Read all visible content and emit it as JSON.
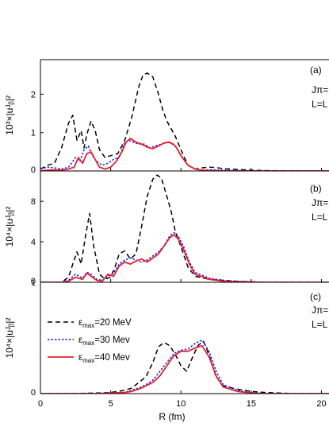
{
  "chart_data": {
    "type": "line",
    "xlabel": "R (fm)",
    "xlim": [
      0,
      22
    ],
    "x_ticks": [
      "0",
      "5",
      "10",
      "15",
      "20"
    ],
    "legend": {
      "placement": "top-left of panel (c)",
      "entries": [
        {
          "label_main": "ε",
          "label_sub": "max",
          "label_rest": "=20 MeV",
          "color": "#000000",
          "dash": "dashed"
        },
        {
          "label_main": "ε",
          "label_sub": "max",
          "label_rest": "=30 Mev",
          "color": "#1a1aff",
          "dash": "dotted"
        },
        {
          "label_main": "ε",
          "label_sub": "max",
          "label_rest": "=40 Mev",
          "color": "#e8202a",
          "dash": "solid"
        }
      ]
    },
    "panels": [
      {
        "tag": "(a)",
        "ylabel": "10³×|uᴶᵦ|²",
        "ylim": [
          0,
          2.9
        ],
        "y_ticks": [
          "0",
          "1",
          "2"
        ],
        "y_tick_values": [
          0,
          1,
          2
        ],
        "annot_1": "Jπ=",
        "annot_2": "L=L",
        "series": [
          {
            "name": "ε max=20 MeV",
            "color": "#000000",
            "dash": "dashed",
            "x": [
              0,
              0.5,
              1,
              1.5,
              2,
              2.3,
              2.6,
              2.9,
              3.1,
              3.3,
              3.6,
              3.9,
              4.2,
              4.6,
              5,
              5.5,
              6,
              6.5,
              7,
              7.3,
              7.6,
              8,
              8.4,
              8.7,
              9,
              9.3,
              9.6,
              10,
              10.5,
              11,
              11.5,
              12,
              12.5,
              13,
              14,
              15,
              16,
              18,
              20,
              22
            ],
            "y": [
              0.05,
              0.15,
              0.2,
              0.6,
              1.25,
              1.45,
              0.8,
              1.05,
              0.6,
              0.95,
              1.3,
              1.05,
              0.55,
              0.35,
              0.4,
              0.45,
              0.8,
              1.4,
              2.2,
              2.5,
              2.55,
              2.45,
              2.0,
              1.6,
              1.3,
              1.1,
              0.9,
              0.55,
              0.15,
              0.05,
              0.08,
              0.1,
              0.09,
              0.06,
              0.04,
              0.02,
              0.01,
              0,
              0,
              0
            ]
          },
          {
            "name": "ε max=30 Mev",
            "color": "#1a1aff",
            "dash": "dotted",
            "x": [
              0,
              0.5,
              1,
              1.5,
              2,
              2.5,
              2.8,
              3.1,
              3.4,
              3.7,
              4,
              4.4,
              4.8,
              5.2,
              5.6,
              6,
              6.3,
              6.6,
              7,
              7.4,
              7.8,
              8.2,
              8.6,
              9,
              9.4,
              9.7,
              10,
              10.5,
              11,
              11.5,
              12,
              13,
              14,
              16,
              18,
              20,
              22
            ],
            "y": [
              0.05,
              0.1,
              0.08,
              0.05,
              0.1,
              0.35,
              0.25,
              0.55,
              0.65,
              0.4,
              0.25,
              0.15,
              0.2,
              0.3,
              0.35,
              0.75,
              0.8,
              0.75,
              0.7,
              0.7,
              0.6,
              0.65,
              0.7,
              0.75,
              0.72,
              0.6,
              0.4,
              0.15,
              0.05,
              0.02,
              0.03,
              0.02,
              0.01,
              0,
              0,
              0,
              0
            ]
          },
          {
            "name": "ε max=40 Mev",
            "color": "#e8202a",
            "dash": "solid",
            "x": [
              0,
              0.5,
              1,
              1.5,
              2,
              2.4,
              2.7,
              3,
              3.3,
              3.6,
              3.9,
              4.2,
              4.6,
              5,
              5.4,
              5.8,
              6.1,
              6.4,
              6.8,
              7.2,
              7.6,
              8,
              8.4,
              8.8,
              9.2,
              9.6,
              10,
              10.5,
              11,
              11.5,
              12,
              13,
              14,
              16,
              18,
              20,
              22
            ],
            "y": [
              0,
              0.02,
              0.03,
              0.02,
              0.05,
              0.1,
              0.35,
              0.2,
              0.45,
              0.5,
              0.3,
              0.1,
              0.05,
              0.1,
              0.25,
              0.5,
              0.75,
              0.85,
              0.75,
              0.7,
              0.62,
              0.58,
              0.65,
              0.73,
              0.75,
              0.65,
              0.4,
              0.15,
              0.05,
              0.02,
              0.01,
              0,
              0,
              0,
              0,
              0,
              0
            ]
          }
        ]
      },
      {
        "tag": "(b)",
        "ylabel": "10⁴×|uᴶᵦ|²",
        "ylim": [
          0,
          11
        ],
        "y_ticks": [
          "0",
          "4",
          "8"
        ],
        "y_tick_values": [
          0,
          4,
          8
        ],
        "annot_1": "Jπ=",
        "annot_2": "L=L",
        "series": [
          {
            "name": "ε max=20 MeV",
            "color": "#000000",
            "dash": "dashed",
            "x": [
              0,
              1,
              1.5,
              2,
              2.3,
              2.6,
              2.9,
              3.2,
              3.5,
              3.8,
              4.2,
              4.6,
              5,
              5.3,
              5.6,
              6,
              6.4,
              6.8,
              7.2,
              7.6,
              8,
              8.3,
              8.6,
              9,
              9.3,
              9.6,
              10,
              10.5,
              11,
              12,
              13,
              14,
              15,
              16,
              18,
              20,
              22
            ],
            "y": [
              0,
              0,
              0,
              0.5,
              1.8,
              3,
              1.8,
              4.5,
              6.8,
              3.5,
              0.8,
              0.3,
              0.5,
              1.5,
              2.8,
              3.1,
              2.3,
              2.8,
              5.5,
              8.5,
              10.2,
              10.6,
              10.3,
              8.5,
              7.0,
              5.0,
              3.5,
              1.5,
              0.6,
              0.3,
              0.2,
              0.1,
              0.05,
              0,
              0,
              0,
              0
            ]
          },
          {
            "name": "ε max=30 Mev",
            "color": "#1a1aff",
            "dash": "dotted",
            "x": [
              0,
              1,
              1.5,
              2,
              2.5,
              3,
              3.3,
              3.6,
              4,
              4.4,
              4.8,
              5.2,
              5.6,
              6,
              6.4,
              6.8,
              7.2,
              7.6,
              8,
              8.4,
              8.8,
              9.2,
              9.5,
              9.8,
              10.2,
              10.6,
              11,
              12,
              13,
              14,
              16,
              18,
              20,
              22
            ],
            "y": [
              0,
              0,
              0,
              0.2,
              0.8,
              0.4,
              1.0,
              0.8,
              0.3,
              0.2,
              0.6,
              0.9,
              1.8,
              2.2,
              2.4,
              2.2,
              2.0,
              2.2,
              2.6,
              3.0,
              3.6,
              4.6,
              4.9,
              4.6,
              3.5,
              2.0,
              1.0,
              0.4,
              0.2,
              0.1,
              0,
              0,
              0,
              0
            ]
          },
          {
            "name": "ε max=40 Mev",
            "color": "#e8202a",
            "dash": "solid",
            "x": [
              0,
              1,
              1.5,
              2,
              2.5,
              3,
              3.3,
              3.6,
              4,
              4.4,
              4.8,
              5.2,
              5.6,
              6,
              6.4,
              6.8,
              7.2,
              7.6,
              8,
              8.4,
              8.8,
              9.2,
              9.5,
              9.8,
              10.2,
              10.6,
              11,
              12,
              13,
              14,
              16,
              18,
              20,
              22
            ],
            "y": [
              0,
              0,
              0,
              0.1,
              0.5,
              0.3,
              0.9,
              0.6,
              0.2,
              0.1,
              0.8,
              0.6,
              1.6,
              2.0,
              1.8,
              2.1,
              2.3,
              2.0,
              2.4,
              2.8,
              3.6,
              4.4,
              4.7,
              4.3,
              3.2,
              1.8,
              0.8,
              0.3,
              0.1,
              0.05,
              0,
              0,
              0,
              0
            ]
          }
        ]
      },
      {
        "tag": "(c)",
        "ylabel": "10⁴×|uᴶᵦ|²",
        "ylim": [
          0,
          1.0
        ],
        "y_ticks": [
          "0",
          "1"
        ],
        "y_tick_values": [
          0,
          1
        ],
        "annot_1": "Jπ=",
        "annot_2": "L=L",
        "series": [
          {
            "name": "ε max=20 MeV",
            "color": "#000000",
            "dash": "dashed",
            "x": [
              0,
              2,
              4,
              5,
              6,
              6.5,
              7,
              7.5,
              8,
              8.4,
              8.8,
              9.2,
              9.6,
              10,
              10.4,
              10.8,
              11.2,
              11.6,
              12,
              12.5,
              13,
              14,
              15,
              16,
              18,
              20,
              22
            ],
            "y": [
              0,
              0,
              0.005,
              0.01,
              0.03,
              0.05,
              0.1,
              0.15,
              0.28,
              0.42,
              0.46,
              0.43,
              0.35,
              0.25,
              0.2,
              0.32,
              0.43,
              0.47,
              0.35,
              0.15,
              0.07,
              0.04,
              0.02,
              0.01,
              0,
              0,
              0
            ]
          },
          {
            "name": "ε max=30 Mev",
            "color": "#1a1aff",
            "dash": "dotted",
            "x": [
              0,
              2,
              4,
              5,
              6,
              6.5,
              7,
              7.5,
              8,
              8.5,
              9,
              9.5,
              10,
              10.5,
              11,
              11.5,
              12,
              12.5,
              13,
              14,
              15,
              16,
              18,
              20,
              22
            ],
            "y": [
              0,
              0,
              0,
              0.005,
              0.01,
              0.03,
              0.05,
              0.08,
              0.12,
              0.2,
              0.28,
              0.36,
              0.39,
              0.4,
              0.45,
              0.48,
              0.38,
              0.2,
              0.08,
              0.03,
              0.01,
              0,
              0,
              0,
              0
            ]
          },
          {
            "name": "ε max=40 Mev",
            "color": "#e8202a",
            "dash": "solid",
            "x": [
              0,
              2,
              4,
              5,
              6,
              6.5,
              7,
              7.5,
              8,
              8.5,
              9,
              9.5,
              10,
              10.5,
              11,
              11.5,
              12,
              12.5,
              13,
              14,
              15,
              16,
              18,
              20,
              22
            ],
            "y": [
              0,
              0,
              0,
              0.005,
              0.01,
              0.02,
              0.04,
              0.07,
              0.1,
              0.16,
              0.25,
              0.34,
              0.38,
              0.38,
              0.41,
              0.43,
              0.33,
              0.16,
              0.06,
              0.02,
              0.005,
              0,
              0,
              0,
              0
            ]
          }
        ]
      }
    ]
  }
}
